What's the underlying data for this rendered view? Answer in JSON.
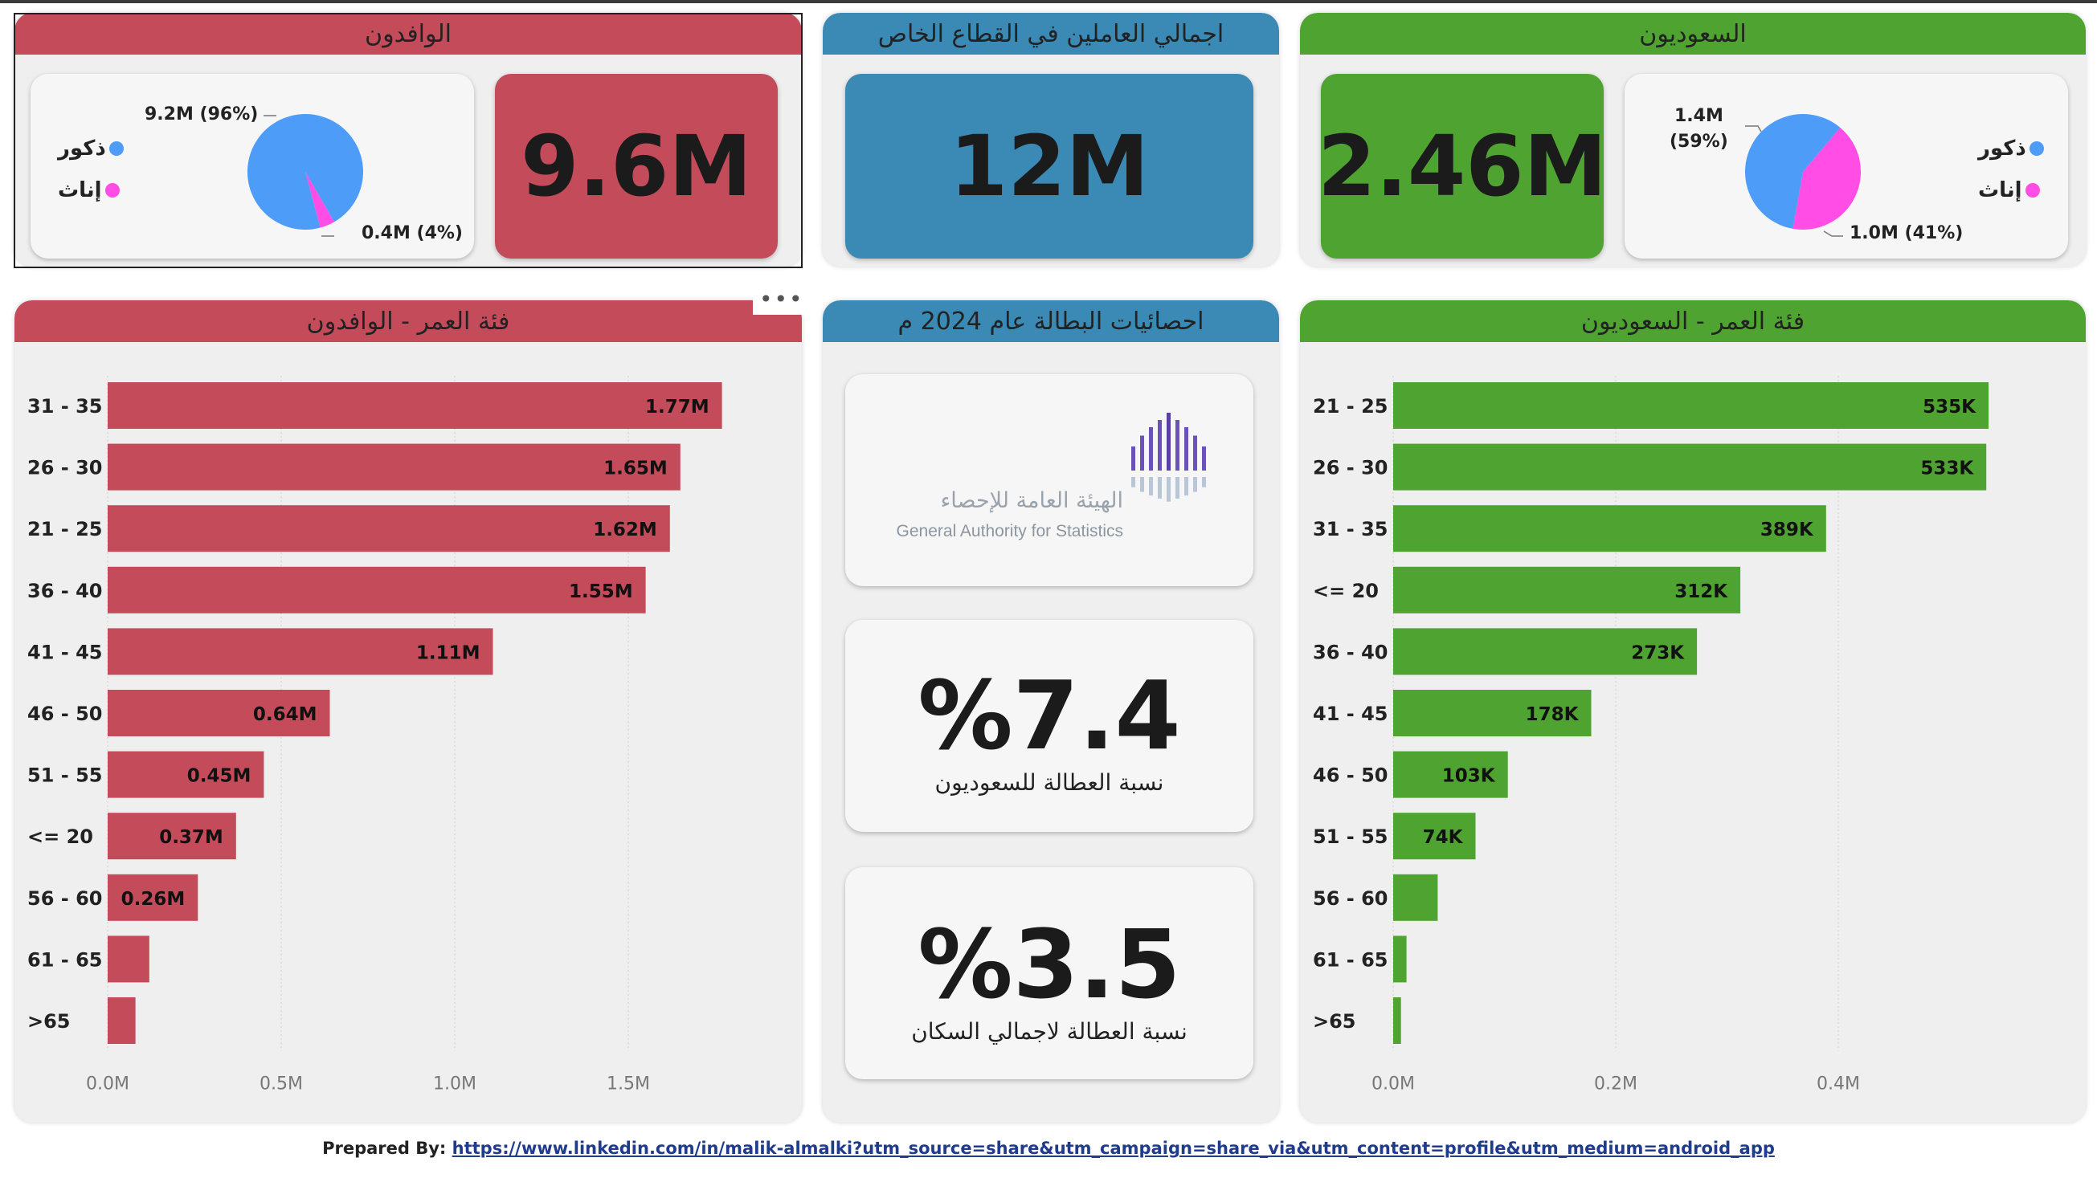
{
  "expats": {
    "title": "الوافدون",
    "total": "9.6M",
    "pie": {
      "male_label": "ذكور",
      "female_label": "إناث",
      "male_value": "9.2M (96%)",
      "female_value": "0.4M (4%)",
      "male_share": 0.96,
      "female_share": 0.04
    }
  },
  "private_sector": {
    "title": "اجمالي العاملين في القطاع الخاص",
    "total": "12M"
  },
  "saudis": {
    "title": "السعوديون",
    "total": "2.46M",
    "pie": {
      "male_label": "ذكور",
      "female_label": "إناث",
      "male_value_line1": "1.4M",
      "male_value_line2": "(59%)",
      "female_value": "1.0M (41%)",
      "male_share": 0.59,
      "female_share": 0.41
    }
  },
  "unemployment": {
    "title": "احصائيات البطالة عام 2024 م",
    "logo_text_ar": "الهيئة العامة للإحصاء",
    "logo_text_en": "General Authority for Statistics",
    "saudi_rate": "%7.4",
    "saudi_label": "نسبة العطالة للسعوديون",
    "total_rate": "%3.5",
    "total_label": "نسبة العطالة لاجمالي السكان"
  },
  "footer": {
    "prefix": "Prepared By: ",
    "link": "https://www.linkedin.com/in/malik-almalki?utm_source=share&utm_campaign=share_via&utm_content=profile&utm_medium=android_app"
  },
  "colors": {
    "red": "#c34b5a",
    "blue": "#3a8ab5",
    "green": "#4fa331",
    "pie_male": "#4d9cf8",
    "pie_female": "#ff4de6"
  },
  "chart_data": [
    {
      "type": "bar",
      "orientation": "horizontal",
      "title": "فئة العمر - الوافدون",
      "categories": [
        "31 - 35",
        "26 - 30",
        "21 - 25",
        "36 - 40",
        "41 - 45",
        "46 - 50",
        "51 - 55",
        "<= 20",
        "56 - 60",
        "61 - 65",
        ">65"
      ],
      "values": [
        1.77,
        1.65,
        1.62,
        1.55,
        1.11,
        0.64,
        0.45,
        0.37,
        0.26,
        0.12,
        0.08
      ],
      "labels": [
        "1.77M",
        "1.65M",
        "1.62M",
        "1.55M",
        "1.11M",
        "0.64M",
        "0.45M",
        "0.37M",
        "0.26M",
        "",
        ""
      ],
      "unit": "M",
      "xlim": [
        0,
        2.0
      ],
      "ticks": [
        0,
        0.5,
        1.0,
        1.5
      ],
      "tick_labels": [
        "0.0M",
        "0.5M",
        "1.0M",
        "1.5M"
      ],
      "grid": true
    },
    {
      "type": "bar",
      "orientation": "horizontal",
      "title": "فئة العمر - السعوديون",
      "categories": [
        "21 - 25",
        "26 - 30",
        "31 - 35",
        "<= 20",
        "36 - 40",
        "41 - 45",
        "46 - 50",
        "51 - 55",
        "56 - 60",
        "61 - 65",
        ">65"
      ],
      "values": [
        535,
        533,
        389,
        312,
        273,
        178,
        103,
        74,
        40,
        12,
        7
      ],
      "labels": [
        "535K",
        "533K",
        "389K",
        "312K",
        "273K",
        "178K",
        "103K",
        "74K",
        "",
        "",
        ""
      ],
      "unit": "K",
      "xlim": [
        0,
        0.6
      ],
      "ticks": [
        0,
        0.2,
        0.4
      ],
      "tick_labels": [
        "0.0M",
        "0.2M",
        "0.4M"
      ],
      "grid": true
    },
    {
      "type": "pie",
      "title": "",
      "labels": [
        "ذكور",
        "إناث"
      ],
      "values": [
        9.2,
        0.4
      ]
    },
    {
      "type": "pie",
      "title": "",
      "labels": [
        "ذكور",
        "إناث"
      ],
      "values": [
        1.4,
        1.0
      ]
    }
  ]
}
